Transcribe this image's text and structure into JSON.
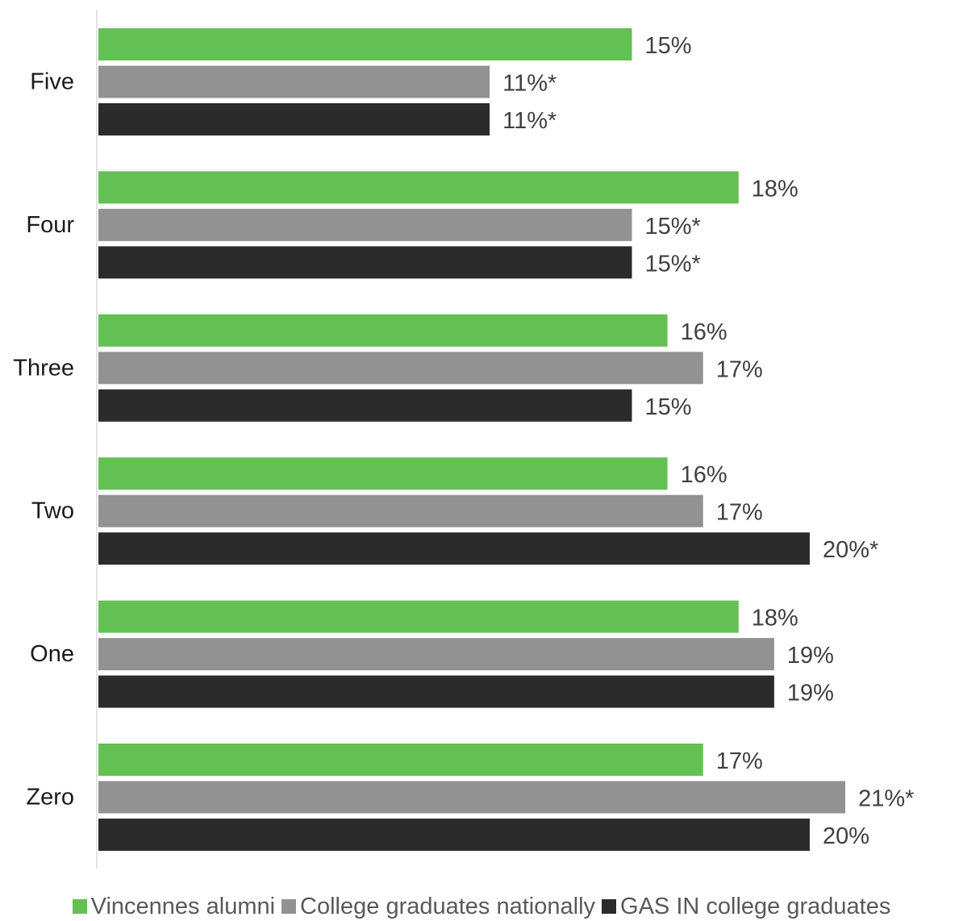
{
  "chart_data": {
    "type": "bar",
    "orientation": "horizontal",
    "categories": [
      "Five",
      "Four",
      "Three",
      "Two",
      "One",
      "Zero"
    ],
    "series": [
      {
        "name": "Vincennes alumni",
        "color": "#62c152",
        "values": [
          15,
          18,
          16,
          16,
          18,
          17
        ],
        "labels": [
          "15%",
          "18%",
          "16%",
          "16%",
          "18%",
          "17%"
        ]
      },
      {
        "name": "College graduates nationally",
        "color": "#929292",
        "values": [
          11,
          15,
          17,
          17,
          19,
          21
        ],
        "labels": [
          "11%*",
          "15%*",
          "17%",
          "17%",
          "19%",
          "21%*"
        ]
      },
      {
        "name": "GAS IN college graduates",
        "color": "#2b2b2b",
        "values": [
          11,
          15,
          15,
          20,
          19,
          20
        ],
        "labels": [
          "11%*",
          "15%*",
          "15%",
          "20%*",
          "19%",
          "20%"
        ]
      }
    ],
    "xlim": [
      0,
      24
    ],
    "grid": false,
    "legend_position": "bottom",
    "title": "",
    "xlabel": "",
    "ylabel": ""
  }
}
